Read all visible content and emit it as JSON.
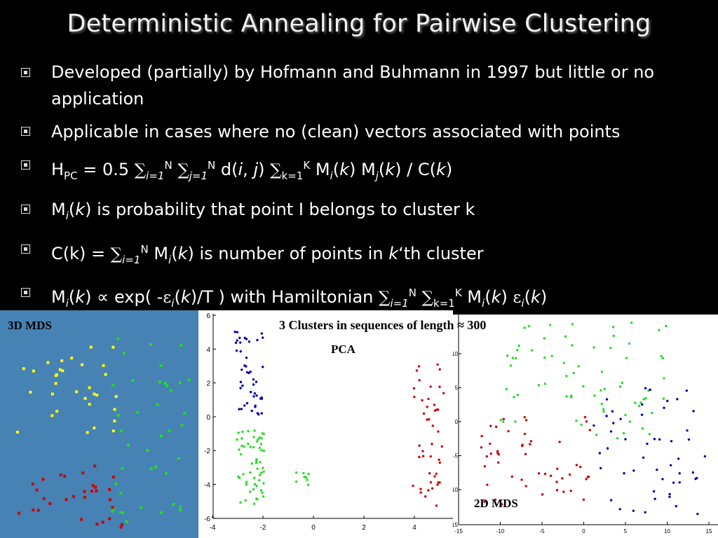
{
  "slide": {
    "title": "Deterministic Annealing for Pairwise Clustering",
    "bullets": [
      {
        "text": "Developed (partially) by Hofmann and Buhmann in 1997 but little or no application"
      },
      {
        "text": "Applicable in cases where no (clean) vectors associated with points"
      },
      {
        "formula": {
          "h": "H",
          "h_sub": "PC",
          "eq": " = 0.5 ",
          "sum": "∑",
          "i_sub": "i=1",
          "n_sup": "N",
          "j_sub": "j=1",
          "d": " d(",
          "i": "i",
          "comma": ", ",
          "j": "j",
          "close": ") ",
          "k_sub": "k=1",
          "k_sup": "K",
          "m": " M",
          "kv": "k",
          "tail1": ") M",
          "tail2": ") / C(",
          "tail3": ")"
        }
      },
      {
        "m": "M",
        "i": "i",
        "k": "k",
        "rest": ") is probability that point I belongs to cluster k"
      },
      {
        "c": "C(k) = ",
        "sum": "∑",
        "i_sub": "i=1",
        "n_sup": "N",
        "m": " M",
        "i": "i",
        "k": "k",
        "rest1": ") is number of points in ",
        "kth": "k",
        "rest2": "‘th cluster"
      },
      {
        "m": "M",
        "i": "i",
        "k": "k",
        "prop": ")  ∝  exp( -",
        "eps": "ε",
        "t": ")/T ) with Hamiltonian ",
        "sum": "∑",
        "i_sub": "i=1",
        "n_sup": "N",
        "k_sub": "k=1",
        "k_sup": "K",
        "m2": " M"
      }
    ]
  },
  "figures": {
    "mds3d": {
      "label": "3D MDS",
      "background": "#4682b4"
    },
    "pca": {
      "heading": "3 Clusters in sequences of length ≈ 300",
      "label": "PCA",
      "xticks": [
        "-4",
        "-2",
        "0",
        "2",
        "4"
      ],
      "yticks": [
        "6",
        "4",
        "2",
        "0",
        "-2",
        "-4",
        "-6"
      ]
    },
    "mds2d": {
      "label": "2D MDS",
      "xticks": [
        "-15",
        "-10",
        "-5",
        "0",
        "5",
        "10",
        "15"
      ],
      "yticks": [
        "10",
        "5",
        "0",
        "-5",
        "-10",
        "15"
      ]
    },
    "colors": {
      "red": "#cc0000",
      "green": "#22dd22",
      "blue": "#0000aa",
      "yellow": "#ffff00"
    }
  }
}
